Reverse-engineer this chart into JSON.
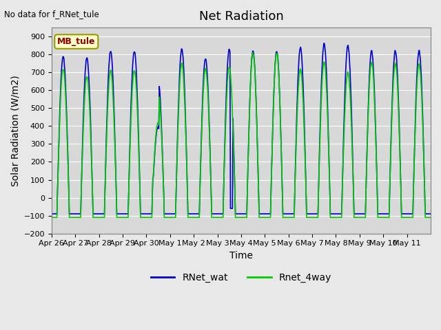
{
  "title": "Net Radiation",
  "ylabel": "Solar Radiation (W/m2)",
  "xlabel": "Time",
  "note": "No data for f_RNet_tule",
  "station_label": "MB_tule",
  "ylim": [
    -200,
    950
  ],
  "yticks": [
    -200,
    -100,
    0,
    100,
    200,
    300,
    400,
    500,
    600,
    700,
    800,
    900
  ],
  "x_tick_labels": [
    "Apr 26",
    "Apr 27",
    "Apr 28",
    "Apr 29",
    "Apr 30",
    "May 1",
    "May 2",
    "May 3",
    "May 4",
    "May 5",
    "May 6",
    "May 7",
    "May 8",
    "May 9",
    "May 10",
    "May 11"
  ],
  "line1_color": "#0000cc",
  "line2_color": "#00cc00",
  "line1_label": "RNet_wat",
  "line2_label": "Rnet_4way",
  "bg_color": "#e8e8e8",
  "plot_bg_color": "#d8d8d8",
  "title_fontsize": 13,
  "label_fontsize": 10,
  "tick_fontsize": 8
}
